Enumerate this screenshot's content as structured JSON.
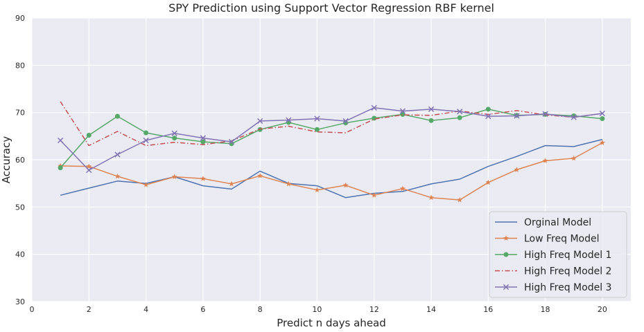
{
  "chart_data": {
    "type": "line",
    "title": "SPY Prediction using Support Vector Regression RBF kernel",
    "xlabel": "Predict n days ahead",
    "ylabel": "Accuracy",
    "xlim": [
      0,
      21
    ],
    "ylim": [
      30,
      90
    ],
    "xticks": [
      "0",
      "2",
      "4",
      "6",
      "8",
      "10",
      "12",
      "14",
      "16",
      "18",
      "20"
    ],
    "yticks": [
      "30",
      "40",
      "50",
      "60",
      "70",
      "80",
      "90"
    ],
    "grid": true,
    "legend_position": "lower-right",
    "x": [
      1,
      2,
      3,
      4,
      5,
      6,
      7,
      8,
      9,
      10,
      11,
      12,
      13,
      14,
      15,
      16,
      17,
      18,
      19,
      20
    ],
    "series": [
      {
        "name": "Orginal Model",
        "color": "#4c72b0",
        "dash": "solid",
        "marker": "none",
        "values": [
          52.5,
          54.0,
          55.5,
          55.0,
          56.4,
          54.5,
          53.8,
          57.6,
          55.0,
          54.5,
          52.0,
          52.9,
          53.3,
          54.9,
          55.9,
          58.6,
          60.7,
          63.0,
          62.8,
          64.3
        ]
      },
      {
        "name": "Low Freq Model",
        "color": "#dd8452",
        "dash": "solid",
        "marker": "star",
        "values": [
          58.7,
          58.6,
          56.5,
          54.7,
          56.4,
          56.0,
          54.9,
          56.6,
          54.9,
          53.6,
          54.6,
          52.5,
          53.9,
          52.0,
          51.5,
          55.2,
          57.9,
          59.8,
          60.3,
          63.6
        ]
      },
      {
        "name": "High Freq Model 1",
        "color": "#55a868",
        "dash": "solid",
        "marker": "circle",
        "values": [
          58.3,
          65.2,
          69.2,
          65.7,
          64.6,
          63.8,
          63.4,
          66.4,
          67.9,
          66.4,
          67.8,
          68.8,
          69.6,
          68.3,
          68.9,
          70.7,
          69.4,
          69.6,
          69.3,
          68.7
        ]
      },
      {
        "name": "High Freq Model 2",
        "color": "#c44e52",
        "dash": "dashdot",
        "marker": "none",
        "values": [
          72.3,
          63.0,
          66.0,
          63.0,
          63.7,
          63.2,
          64.0,
          66.5,
          67.1,
          65.9,
          65.7,
          68.6,
          69.5,
          69.4,
          70.3,
          69.6,
          70.4,
          69.5,
          69.0,
          69.8
        ]
      },
      {
        "name": "High Freq Model 3",
        "color": "#8172b3",
        "dash": "solid",
        "marker": "x",
        "values": [
          64.1,
          57.8,
          61.1,
          64.1,
          65.6,
          64.6,
          63.8,
          68.2,
          68.4,
          68.7,
          68.2,
          71.0,
          70.3,
          70.7,
          70.2,
          69.2,
          69.3,
          69.7,
          69.0,
          69.8
        ]
      }
    ]
  }
}
